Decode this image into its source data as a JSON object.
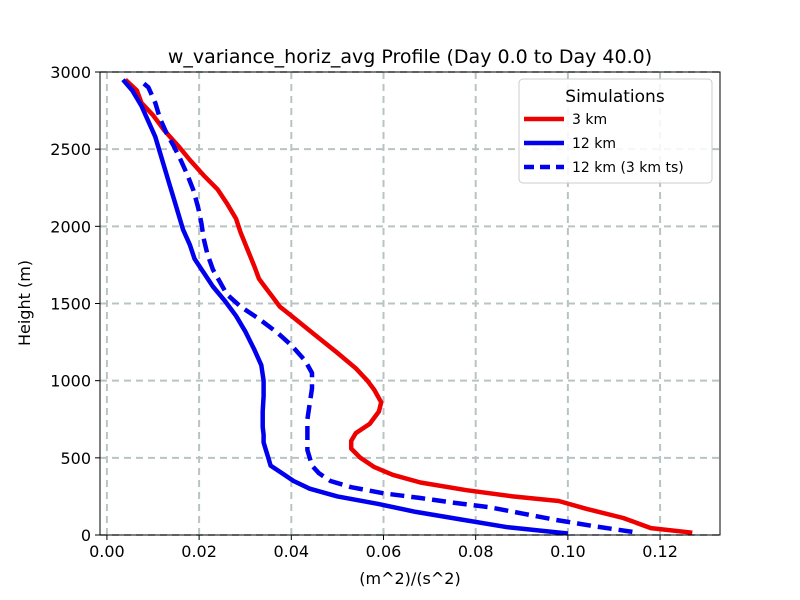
{
  "chart_data": {
    "type": "line",
    "title": "w_variance_horiz_avg Profile (Day 0.0 to Day 40.0)",
    "xlabel": "(m^2)/(s^2)",
    "ylabel": "Height (m)",
    "xlim": [
      -0.0015,
      0.133
    ],
    "ylim": [
      0,
      3000
    ],
    "xticks": [
      0.0,
      0.02,
      0.04,
      0.06,
      0.08,
      0.1,
      0.12
    ],
    "xtick_labels": [
      "0.00",
      "0.02",
      "0.04",
      "0.06",
      "0.08",
      "0.10",
      "0.12"
    ],
    "yticks": [
      0,
      500,
      1000,
      1500,
      2000,
      2500,
      3000
    ],
    "ytick_labels": [
      "0",
      "500",
      "1000",
      "1500",
      "2000",
      "2500",
      "3000"
    ],
    "grid": true,
    "legend": {
      "title": "Simulations",
      "position": "top-right"
    },
    "series": [
      {
        "name": "3 km",
        "color": "#ee0000",
        "style": "solid",
        "points": [
          [
            0.127,
            15
          ],
          [
            0.118,
            45
          ],
          [
            0.112,
            110
          ],
          [
            0.104,
            170
          ],
          [
            0.098,
            220
          ],
          [
            0.088,
            250
          ],
          [
            0.078,
            290
          ],
          [
            0.068,
            340
          ],
          [
            0.062,
            390
          ],
          [
            0.058,
            440
          ],
          [
            0.055,
            500
          ],
          [
            0.053,
            560
          ],
          [
            0.053,
            610
          ],
          [
            0.054,
            660
          ],
          [
            0.057,
            720
          ],
          [
            0.059,
            800
          ],
          [
            0.0595,
            860
          ],
          [
            0.058,
            940
          ],
          [
            0.0565,
            1000
          ],
          [
            0.054,
            1080
          ],
          [
            0.05,
            1180
          ],
          [
            0.045,
            1300
          ],
          [
            0.04,
            1420
          ],
          [
            0.0375,
            1480
          ],
          [
            0.036,
            1540
          ],
          [
            0.0345,
            1600
          ],
          [
            0.033,
            1660
          ],
          [
            0.032,
            1740
          ],
          [
            0.0305,
            1850
          ],
          [
            0.029,
            1960
          ],
          [
            0.028,
            2050
          ],
          [
            0.026,
            2150
          ],
          [
            0.024,
            2240
          ],
          [
            0.021,
            2330
          ],
          [
            0.018,
            2430
          ],
          [
            0.0155,
            2520
          ],
          [
            0.0125,
            2620
          ],
          [
            0.01,
            2720
          ],
          [
            0.0075,
            2800
          ],
          [
            0.0065,
            2880
          ],
          [
            0.004,
            2950
          ]
        ]
      },
      {
        "name": "12 km",
        "color": "#0000ee",
        "style": "solid",
        "points": [
          [
            0.1,
            10
          ],
          [
            0.087,
            50
          ],
          [
            0.077,
            100
          ],
          [
            0.067,
            150
          ],
          [
            0.059,
            200
          ],
          [
            0.05,
            250
          ],
          [
            0.044,
            300
          ],
          [
            0.0405,
            350
          ],
          [
            0.038,
            400
          ],
          [
            0.0355,
            450
          ],
          [
            0.035,
            500
          ],
          [
            0.0345,
            550
          ],
          [
            0.034,
            600
          ],
          [
            0.034,
            650
          ],
          [
            0.0338,
            700
          ],
          [
            0.0338,
            800
          ],
          [
            0.034,
            900
          ],
          [
            0.034,
            1000
          ],
          [
            0.0335,
            1100
          ],
          [
            0.032,
            1200
          ],
          [
            0.03,
            1320
          ],
          [
            0.028,
            1420
          ],
          [
            0.0255,
            1520
          ],
          [
            0.023,
            1610
          ],
          [
            0.021,
            1700
          ],
          [
            0.019,
            1790
          ],
          [
            0.018,
            1880
          ],
          [
            0.0165,
            1980
          ],
          [
            0.0155,
            2080
          ],
          [
            0.0145,
            2180
          ],
          [
            0.0135,
            2280
          ],
          [
            0.0125,
            2380
          ],
          [
            0.0115,
            2480
          ],
          [
            0.0105,
            2580
          ],
          [
            0.009,
            2680
          ],
          [
            0.0075,
            2780
          ],
          [
            0.0055,
            2880
          ],
          [
            0.0035,
            2950
          ]
        ]
      },
      {
        "name": "12 km (3 km ts)",
        "color": "#0000ee",
        "style": "dashed",
        "points": [
          [
            0.114,
            20
          ],
          [
            0.105,
            60
          ],
          [
            0.097,
            100
          ],
          [
            0.09,
            140
          ],
          [
            0.083,
            180
          ],
          [
            0.075,
            210
          ],
          [
            0.068,
            240
          ],
          [
            0.06,
            270
          ],
          [
            0.053,
            310
          ],
          [
            0.0485,
            350
          ],
          [
            0.046,
            400
          ],
          [
            0.0445,
            450
          ],
          [
            0.044,
            500
          ],
          [
            0.0435,
            550
          ],
          [
            0.0435,
            650
          ],
          [
            0.0435,
            750
          ],
          [
            0.044,
            850
          ],
          [
            0.0445,
            950
          ],
          [
            0.0445,
            1050
          ],
          [
            0.043,
            1130
          ],
          [
            0.04,
            1230
          ],
          [
            0.037,
            1310
          ],
          [
            0.033,
            1400
          ],
          [
            0.029,
            1480
          ],
          [
            0.026,
            1560
          ],
          [
            0.0245,
            1640
          ],
          [
            0.023,
            1720
          ],
          [
            0.0218,
            1820
          ],
          [
            0.021,
            1920
          ],
          [
            0.0205,
            2020
          ],
          [
            0.0198,
            2120
          ],
          [
            0.0188,
            2230
          ],
          [
            0.0175,
            2330
          ],
          [
            0.016,
            2430
          ],
          [
            0.0145,
            2520
          ],
          [
            0.013,
            2600
          ],
          [
            0.0115,
            2700
          ],
          [
            0.0105,
            2800
          ],
          [
            0.009,
            2900
          ],
          [
            0.007,
            2950
          ]
        ]
      }
    ]
  }
}
